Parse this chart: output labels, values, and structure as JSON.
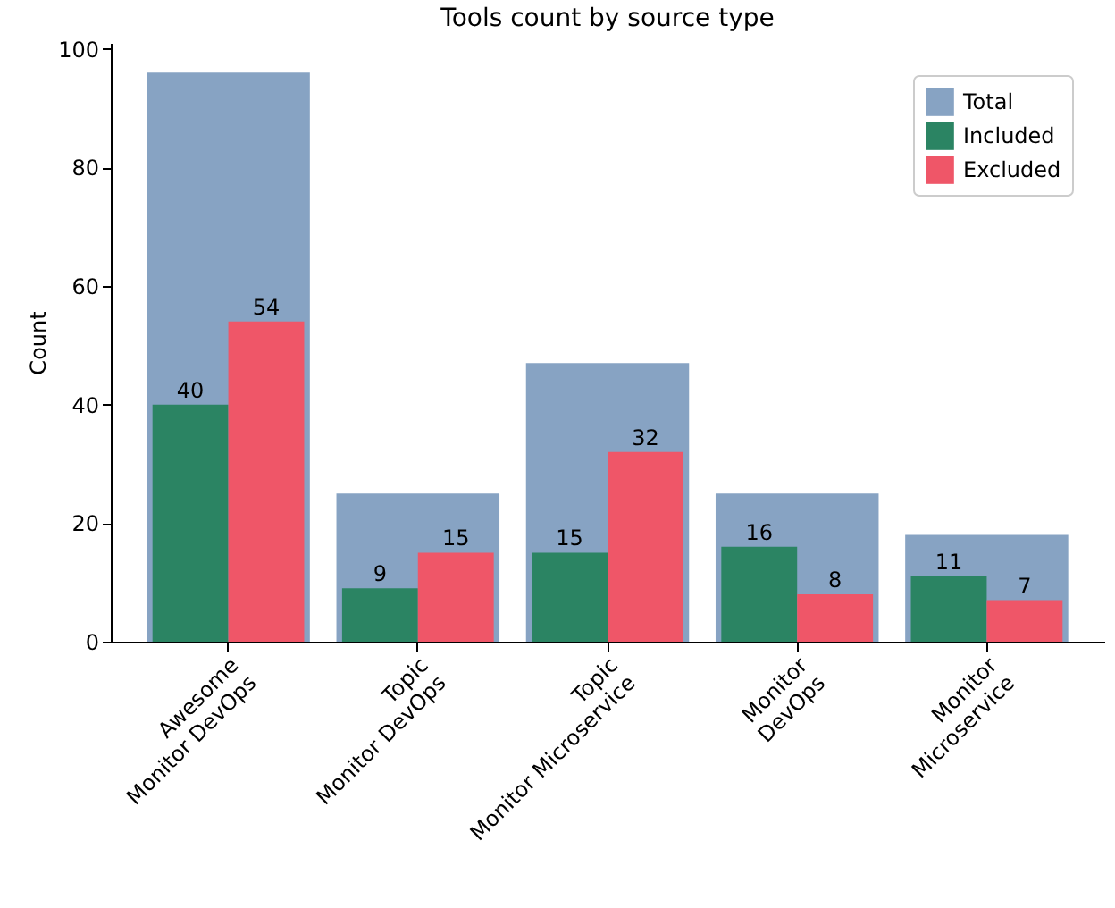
{
  "chart_data": {
    "type": "bar",
    "title": "Tools count by source type",
    "ylabel": "Count",
    "categories": [
      "Awesome Monitor DevOps",
      "Topic Monitor DevOps",
      "Topic Monitor Microservice",
      "Monitor DevOps",
      "Monitor Microservice"
    ],
    "series": [
      {
        "name": "Total",
        "color": "#87a3c3",
        "values": [
          96,
          25,
          47,
          25,
          18
        ]
      },
      {
        "name": "Included",
        "color": "#2b8463",
        "values": [
          40,
          9,
          15,
          16,
          11
        ],
        "value_labels": [
          "40",
          "9",
          "15",
          "16",
          "11"
        ]
      },
      {
        "name": "Excluded",
        "color": "#ef5668",
        "values": [
          54,
          15,
          32,
          8,
          7
        ],
        "value_labels": [
          "54",
          "15",
          "32",
          "8",
          "7"
        ]
      }
    ],
    "ylim": [
      0,
      101
    ],
    "yticks": [
      0,
      20,
      40,
      60,
      80,
      100
    ],
    "legend": "top right",
    "grid": false
  }
}
